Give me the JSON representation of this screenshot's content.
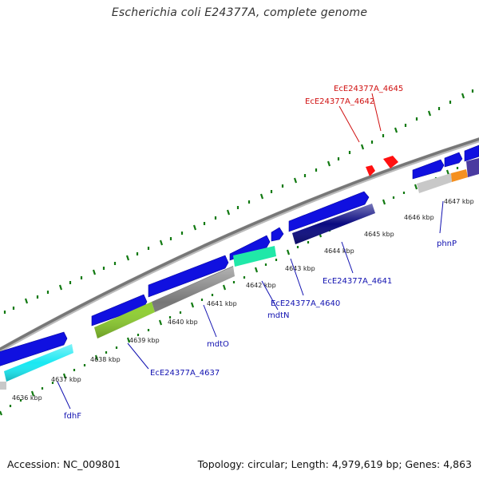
{
  "title": "Escherichia coli E24377A, complete genome",
  "footer": {
    "accession": "Accession: NC_009801",
    "topology": "Topology: circular; Length: 4,979,619 bp; Genes: 4,863"
  },
  "colors": {
    "blue": "#1010e0",
    "navy": "#0a0a80",
    "gray": "#777777",
    "light_gray": "#c8c8c8",
    "cyan": "#19e8f2",
    "teal": "#20e8a8",
    "lime": "#8fd030",
    "red": "#ff1010",
    "orange": "#f59020",
    "purple": "#4a3aa0",
    "tick_green": "#127a12",
    "label_blue": "#1010b0",
    "label_red": "#d01010"
  },
  "kbp_labels": [
    "4636 kbp",
    "4637 kbp",
    "4638 kbp",
    "4639 kbp",
    "4640 kbp",
    "4641 kbp",
    "4642 kbp",
    "4643 kbp",
    "4644 kbp",
    "4645 kbp",
    "4646 kbp",
    "4647 kbp"
  ],
  "gene_labels": [
    {
      "text": "fdhF",
      "color": "blue"
    },
    {
      "text": "EcE24377A_4637",
      "color": "blue"
    },
    {
      "text": "mdtO",
      "color": "blue"
    },
    {
      "text": "mdtN",
      "color": "blue"
    },
    {
      "text": "EcE24377A_4640",
      "color": "blue"
    },
    {
      "text": "EcE24377A_4641",
      "color": "blue"
    },
    {
      "text": "phnP",
      "color": "blue"
    },
    {
      "text": "EcE24377A_4642",
      "color": "red"
    },
    {
      "text": "EcE24377A_4645",
      "color": "red"
    }
  ]
}
